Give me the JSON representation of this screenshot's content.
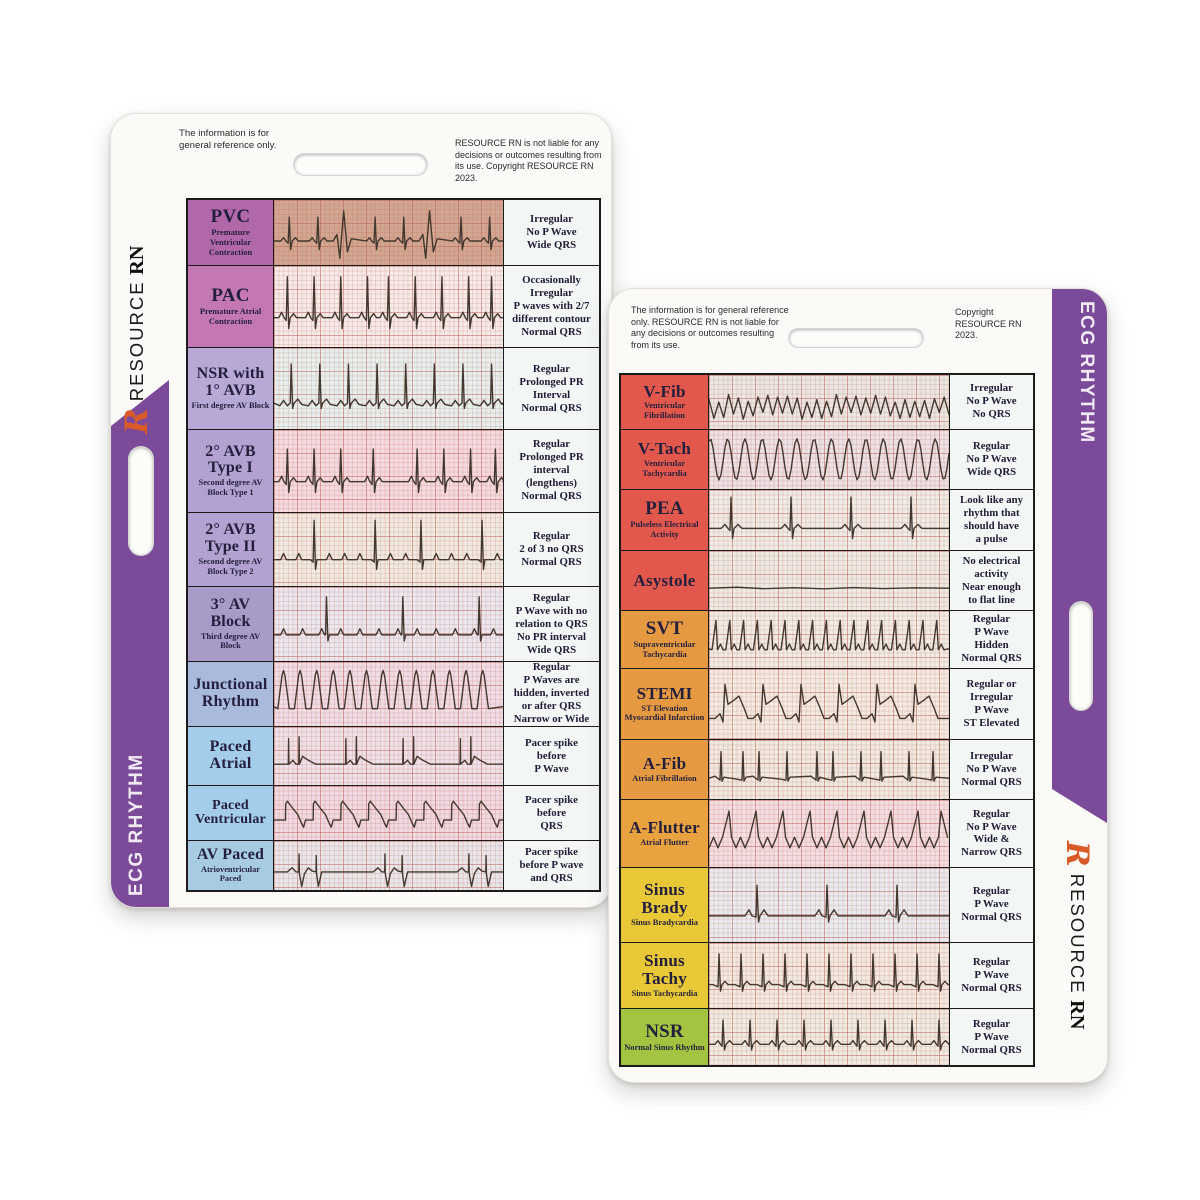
{
  "colors": {
    "band_purple": "#7b4a99",
    "logo_orange": "#d85a28",
    "ink": "#43382f",
    "red_label": "#e2584c",
    "orange_label": "#e59a42",
    "yellow_label": "#e9c837",
    "green_label": "#a2c440"
  },
  "brand": {
    "logo": "R",
    "name": "RESOURCE",
    "suffix": "RN",
    "side_title": "ECG RHYTHM"
  },
  "card_front": {
    "disclaimer_left": "The information is for general reference only.",
    "disclaimer_right": "RESOURCE RN is not liable for any decisions or outcomes resulting from its use. Copyright RESOURCE RN 2023.",
    "rows": [
      {
        "title": "PVC",
        "subtitle": "Premature Ventricular Contraction",
        "notes": [
          "Irregular",
          "No P Wave",
          "Wide QRS"
        ],
        "label_bg": "#b168aa",
        "strip_bg": "#d2a791",
        "pattern": "pvc"
      },
      {
        "title": "PAC",
        "subtitle": "Premature Atrial Contraction",
        "notes": [
          "Occasionally",
          "Irregular",
          "P waves with 2/7",
          "different contour",
          "Normal QRS"
        ],
        "label_bg": "#c377b3",
        "strip_bg": "#f6eae8",
        "pattern": "pac"
      },
      {
        "title": "NSR with 1° AVB",
        "subtitle": "First degree AV Block",
        "notes": [
          "Regular",
          "Prolonged PR",
          "Interval",
          "Normal QRS"
        ],
        "label_bg": "#b7a8d6",
        "strip_bg": "#e7efed",
        "pattern": "nsr_1avb"
      },
      {
        "title": "2° AVB Type I",
        "subtitle": "Second degree AV Block Type 1",
        "notes": [
          "Regular",
          "Prolonged PR",
          "interval",
          "(lengthens)",
          "Normal QRS"
        ],
        "label_bg": "#b2a1d1",
        "strip_bg": "#f4dade",
        "pattern": "avb_type1"
      },
      {
        "title": "2° AVB Type II",
        "subtitle": "Second degree AV Block Type 2",
        "notes": [
          "Regular",
          "2 of 3 no QRS",
          "Normal QRS"
        ],
        "label_bg": "#b2a1d1",
        "strip_bg": "#f0e9e0",
        "pattern": "avb_type2"
      },
      {
        "title": "3° AV Block",
        "subtitle": "Third degree AV Block",
        "notes": [
          "Regular",
          "P Wave with no",
          "relation to QRS",
          "No PR interval",
          "Wide QRS"
        ],
        "label_bg": "#a89bc8",
        "strip_bg": "#eae7ee",
        "pattern": "avb_3"
      },
      {
        "title": "Junctional Rhythm",
        "subtitle": "",
        "notes": [
          "Regular",
          "P Waves are",
          "hidden, inverted",
          "or after QRS",
          "Narrow or Wide"
        ],
        "label_bg": "#a9badd",
        "strip_bg": "#f0dce5",
        "pattern": "junctional"
      },
      {
        "title": "Paced Atrial",
        "subtitle": "",
        "notes": [
          "Pacer spike",
          "before",
          "P Wave"
        ],
        "label_bg": "#a3cdea",
        "strip_bg": "#eee0e7",
        "pattern": "paced_atrial"
      },
      {
        "title": "Paced Ventricular",
        "subtitle": "",
        "notes": [
          "Pacer spike",
          "before",
          "QRS"
        ],
        "label_bg": "#a3cdea",
        "strip_bg": "#f0d9e1",
        "pattern": "paced_ventricular"
      },
      {
        "title": "AV Paced",
        "subtitle": "Atrioventricular Paced",
        "notes": [
          "Pacer spike",
          "before P wave",
          "and QRS"
        ],
        "label_bg": "#a6cbe3",
        "strip_bg": "#e9e6ea",
        "pattern": "av_paced"
      }
    ]
  },
  "card_back": {
    "disclaimer_left": "The information is for general reference only. RESOURCE RN is not liable for any decisions or outcomes resulting from its use.",
    "disclaimer_right": "Copyright RESOURCE RN 2023.",
    "rows": [
      {
        "title": "V-Fib",
        "subtitle": "Ventricular Fibrillation",
        "notes": [
          "Irregular",
          "No P Wave",
          "No QRS"
        ],
        "label_bg": "#e2584c",
        "strip_bg": "#ebe6e2",
        "pattern": "vfib"
      },
      {
        "title": "V-Tach",
        "subtitle": "Ventricular Tachycardia",
        "notes": [
          "Regular",
          "No P Wave",
          "Wide QRS"
        ],
        "label_bg": "#e2584c",
        "strip_bg": "#ece1e4",
        "pattern": "vtach"
      },
      {
        "title": "PEA",
        "subtitle": "Pulseless Electrical Activity",
        "notes": [
          "Look like any",
          "rhythm that",
          "should have",
          "a pulse"
        ],
        "label_bg": "#e2584c",
        "strip_bg": "#efece6",
        "pattern": "pea"
      },
      {
        "title": "Asystole",
        "subtitle": "",
        "notes": [
          "No electrical",
          "activity",
          "Near enough",
          "to flat line"
        ],
        "label_bg": "#e2584c",
        "strip_bg": "#eceae2",
        "pattern": "asystole"
      },
      {
        "title": "SVT",
        "subtitle": "Supraventricular Tachycardia",
        "notes": [
          "Regular",
          "P Wave",
          "Hidden",
          "Normal QRS"
        ],
        "label_bg": "#e59a42",
        "strip_bg": "#f0ece4",
        "pattern": "svt"
      },
      {
        "title": "STEMI",
        "subtitle": "ST Elevation Myocardial Infarction",
        "notes": [
          "Regular or",
          "Irregular",
          "P Wave",
          "ST Elevated"
        ],
        "label_bg": "#e59a42",
        "strip_bg": "#f2eae1",
        "pattern": "stemi"
      },
      {
        "title": "A-Fib",
        "subtitle": "Atrial Fibrillation",
        "notes": [
          "Irregular",
          "No P Wave",
          "Normal QRS"
        ],
        "label_bg": "#e59a42",
        "strip_bg": "#efe9e0",
        "pattern": "afib"
      },
      {
        "title": "A-Flutter",
        "subtitle": "Atrial Flutter",
        "notes": [
          "Regular",
          "No P Wave",
          "Wide &",
          "Narrow QRS"
        ],
        "label_bg": "#e8a23f",
        "strip_bg": "#f3dde1",
        "pattern": "aflutter"
      },
      {
        "title": "Sinus Brady",
        "subtitle": "Sinus Bradycardia",
        "notes": [
          "Regular",
          "P Wave",
          "Normal QRS"
        ],
        "label_bg": "#e9c837",
        "strip_bg": "#e9eaee",
        "pattern": "sinus_brady"
      },
      {
        "title": "Sinus Tachy",
        "subtitle": "Sinus Tachycardia",
        "notes": [
          "Regular",
          "P Wave",
          "Normal QRS"
        ],
        "label_bg": "#e9c837",
        "strip_bg": "#f1e8e0",
        "pattern": "sinus_tachy"
      },
      {
        "title": "NSR",
        "subtitle": "Normal Sinus Rhythm",
        "notes": [
          "Regular",
          "P Wave",
          "Normal QRS"
        ],
        "label_bg": "#a2c440",
        "strip_bg": "#efebe1",
        "pattern": "nsr"
      }
    ]
  }
}
